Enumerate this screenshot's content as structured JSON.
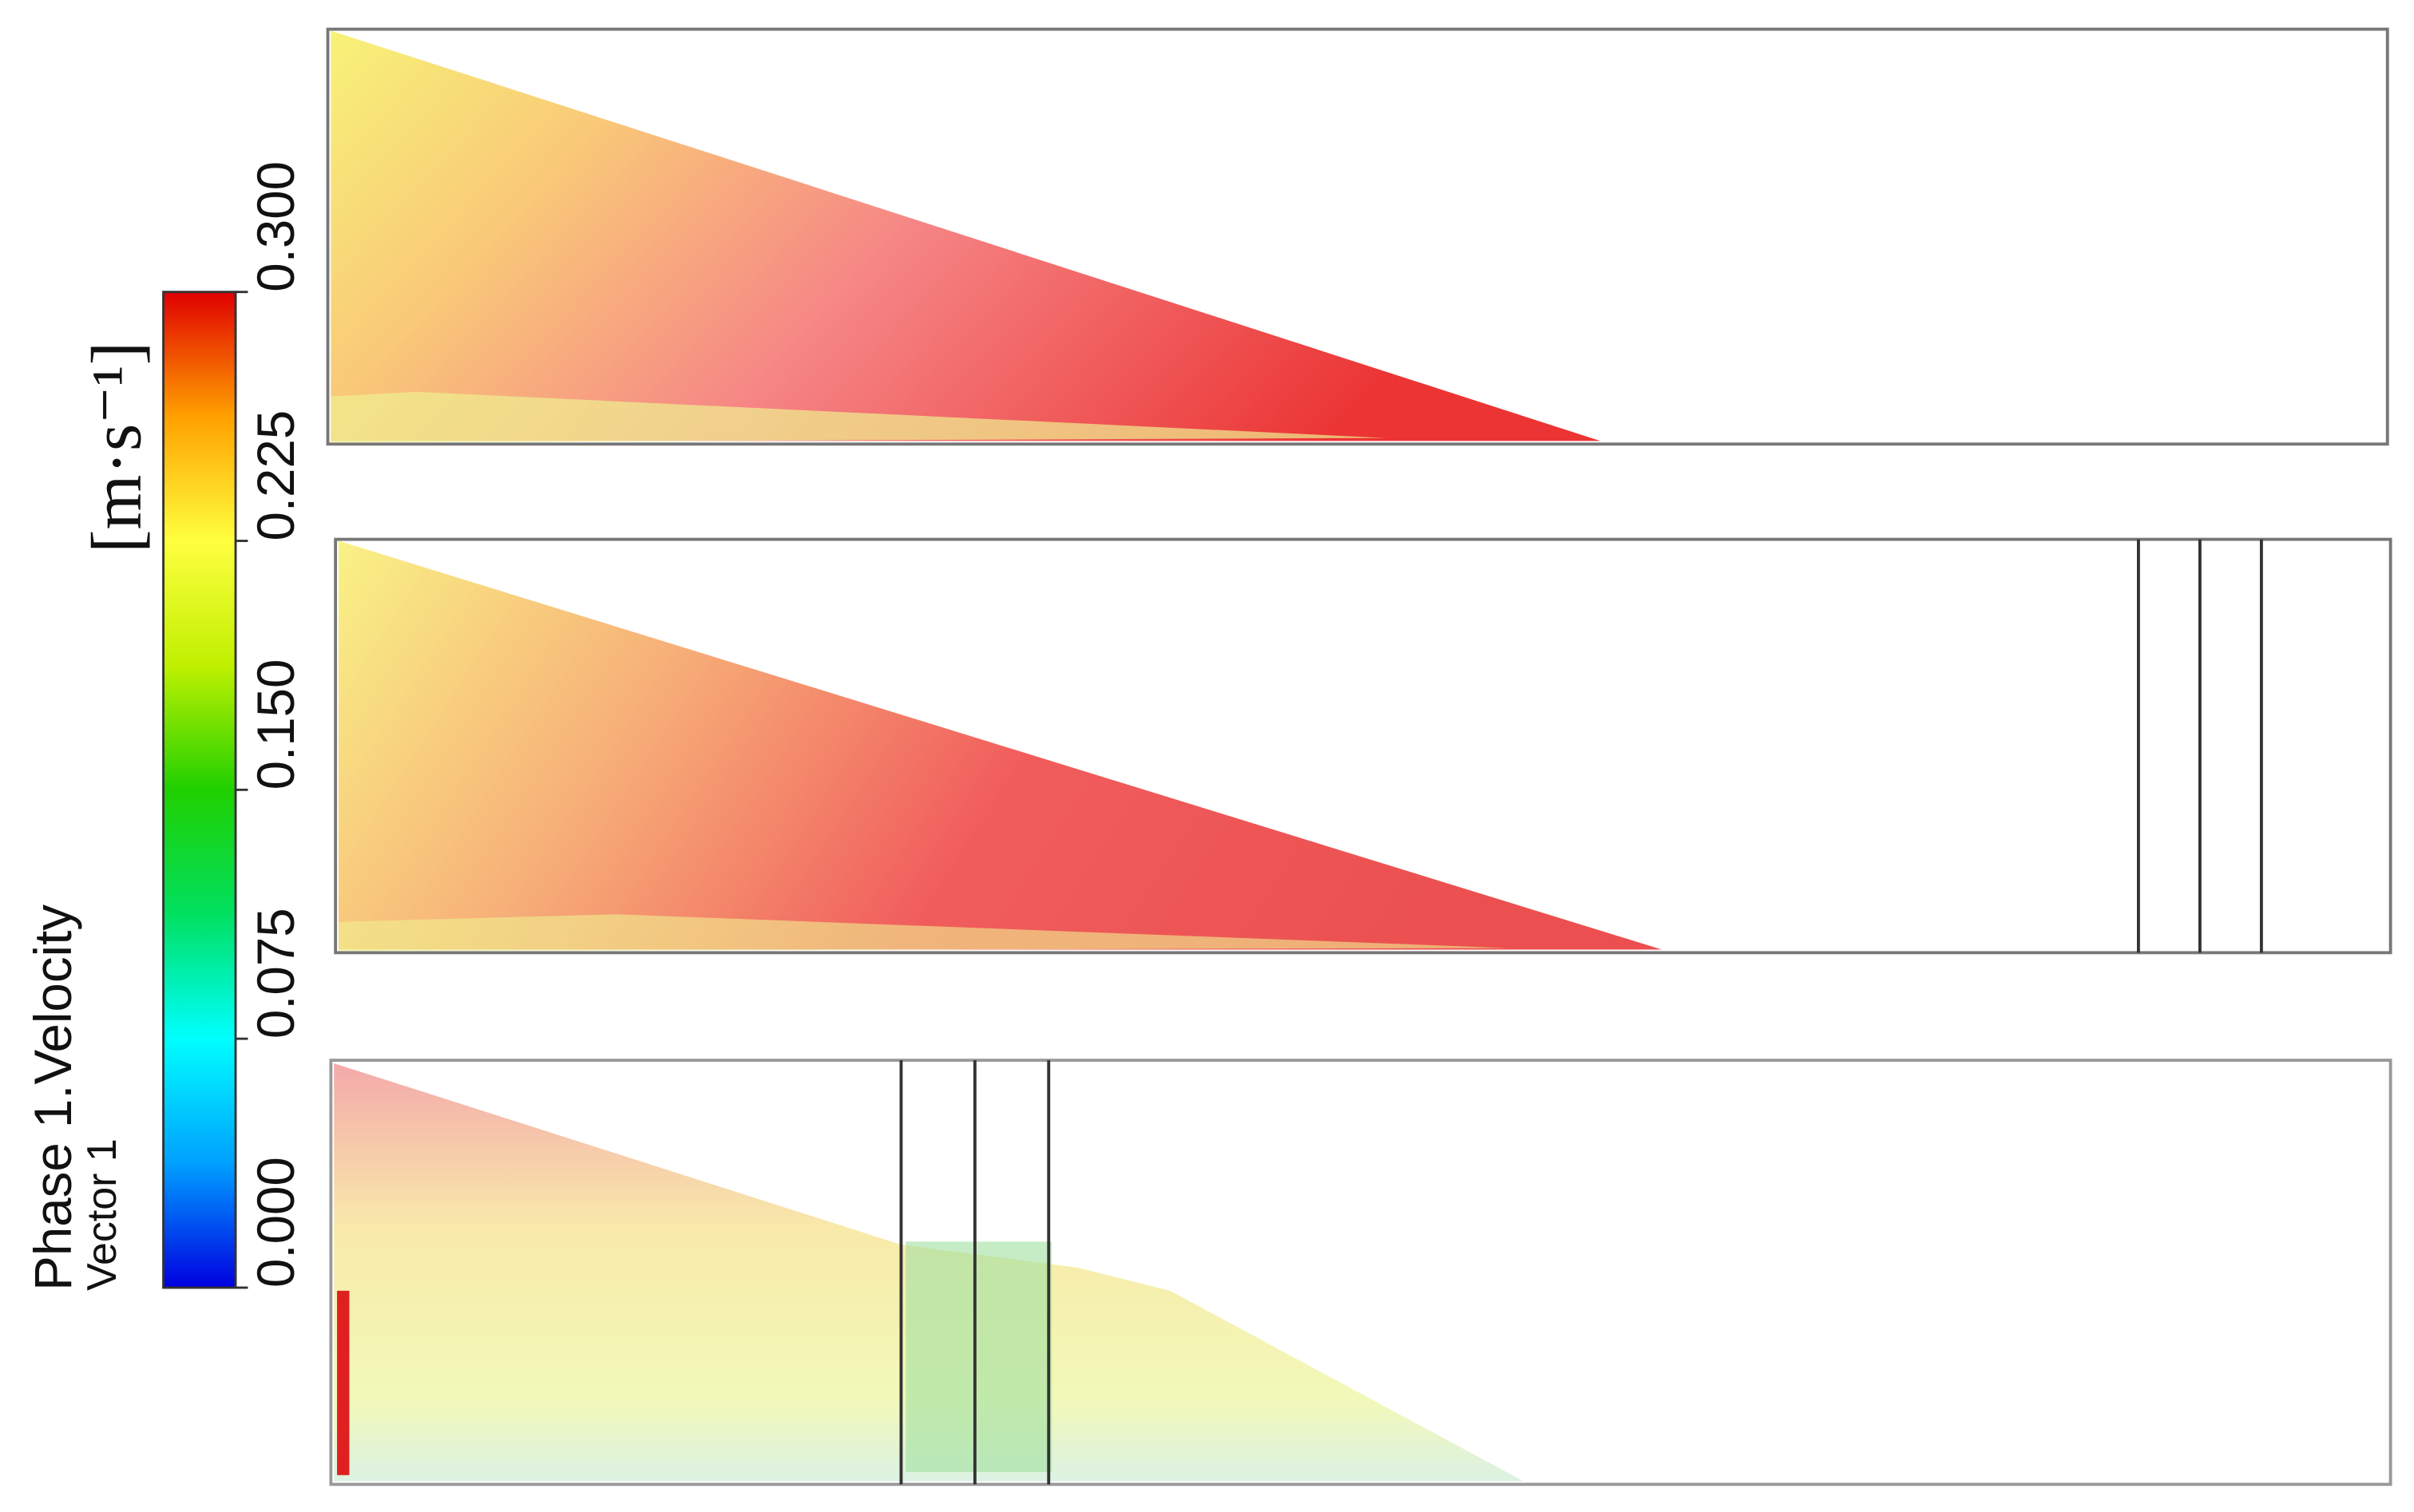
{
  "chart_data": {
    "type": "vector-field",
    "colorbar_title": "Phase 1.Velocity",
    "colorbar_subtitle": "Vector 1",
    "colorbar_unit": "[m·s⁻¹]",
    "clim": [
      0,
      0.3
    ],
    "cticks": [
      {
        "value": 0,
        "label": "0.000"
      },
      {
        "value": 0.075,
        "label": "0.075"
      },
      {
        "value": 0.15,
        "label": "0.150"
      },
      {
        "value": 0.225,
        "label": "0.225"
      },
      {
        "value": 0.3,
        "label": "0.300"
      }
    ],
    "colormap": [
      "#0000e0",
      "#00a0ff",
      "#00ffff",
      "#00e060",
      "#20d000",
      "#c0f000",
      "#ffff40",
      "#ffa000",
      "#e00000"
    ]
  }
}
